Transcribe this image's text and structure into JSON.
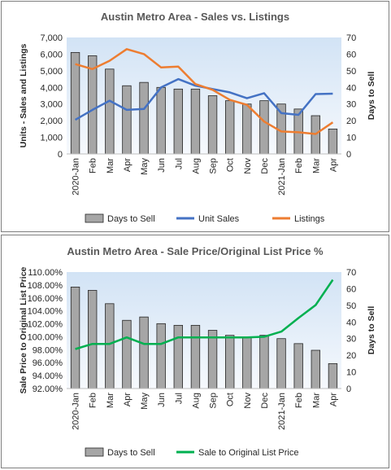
{
  "chart_data": [
    {
      "type": "bar",
      "title": "Austin Metro Area - Sales vs. Listings",
      "ylabel_left": "Units - Sales and Listings",
      "ylabel_right": "Days to Sell",
      "categories": [
        "2020-Jan",
        "Feb",
        "Mar",
        "Apr",
        "May",
        "Jun",
        "Jul",
        "Aug",
        "Sep",
        "Oct",
        "Nov",
        "Dec",
        "2021-Jan",
        "Feb",
        "Mar",
        "Apr"
      ],
      "yticks_left": [
        "0",
        "1,000",
        "2,000",
        "3,000",
        "4,000",
        "5,000",
        "6,000",
        "7,000"
      ],
      "yticks_right": [
        "0",
        "10",
        "20",
        "30",
        "40",
        "50",
        "60",
        "70"
      ],
      "ylim_left": [
        0,
        7000
      ],
      "ylim_right": [
        0,
        70
      ],
      "grid": false,
      "legend_position": "bottom",
      "series": [
        {
          "name": "Days to Sell",
          "type": "bar",
          "axis": "right",
          "color": "#a6a6a6",
          "values": [
            61,
            59,
            51,
            41,
            43,
            40,
            39,
            39,
            35,
            32,
            30,
            32,
            30,
            27,
            23,
            15
          ]
        },
        {
          "name": "Unit Sales",
          "type": "line",
          "axis": "left",
          "color": "#4472c4",
          "values": [
            2050,
            2650,
            3200,
            2650,
            2700,
            4000,
            4500,
            4100,
            3900,
            3700,
            3350,
            3650,
            2450,
            2350,
            3600,
            3620
          ]
        },
        {
          "name": "Listings",
          "type": "line",
          "axis": "left",
          "color": "#ed7d31",
          "values": [
            5400,
            5100,
            5600,
            6300,
            6000,
            5200,
            5250,
            4200,
            3850,
            3250,
            2950,
            1950,
            1350,
            1300,
            1200,
            1900
          ]
        }
      ]
    },
    {
      "type": "bar",
      "title": "Austin Metro Area - Sale Price/Original List Price %",
      "ylabel_left": "Sale Price to Original List Price",
      "ylabel_right": "Days to Sell",
      "categories": [
        "2020-Jan",
        "Feb",
        "Mar",
        "Apr",
        "May",
        "Jun",
        "Jul",
        "Aug",
        "Sep",
        "Oct",
        "Nov",
        "Dec",
        "2021-Jan",
        "Feb",
        "Mar",
        "Apr"
      ],
      "yticks_left": [
        "92.00%",
        "94.00%",
        "96.00%",
        "98.00%",
        "100.00%",
        "102.00%",
        "104.00%",
        "106.00%",
        "108.00%",
        "110.00%"
      ],
      "yticks_right": [
        "0",
        "10",
        "20",
        "30",
        "40",
        "50",
        "60",
        "70"
      ],
      "ylim_left": [
        92,
        110
      ],
      "ylim_right": [
        0,
        70
      ],
      "grid": false,
      "legend_position": "bottom",
      "series": [
        {
          "name": "Days to Sell",
          "type": "bar",
          "axis": "right",
          "color": "#a6a6a6",
          "values": [
            61,
            59,
            51,
            41,
            43,
            39,
            38,
            38,
            35,
            32,
            31,
            32,
            30,
            27,
            23,
            15
          ]
        },
        {
          "name": "Sale to Original List Price",
          "type": "line",
          "axis": "left",
          "color": "#00b050",
          "values": [
            98.1,
            98.9,
            98.9,
            99.9,
            98.9,
            98.9,
            99.9,
            99.9,
            99.9,
            99.9,
            99.9,
            100.0,
            100.8,
            102.9,
            104.9,
            108.8
          ]
        }
      ]
    }
  ]
}
